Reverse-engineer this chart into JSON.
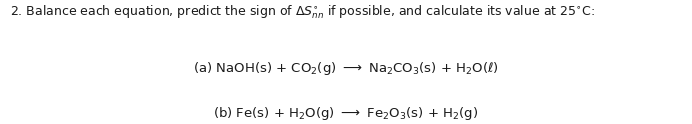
{
  "title_line": "2. Balance each equation, predict the sign of $\\Delta S^{\\circ}_{\\mathit{nn}}$ if possible, and calculate its value at 25$^{\\circ}$C:",
  "line_a": "(a) NaOH(s) + CO$_2$(g) $\\longrightarrow$ Na$_2$CO$_3$(s) + H$_2$O($\\ell$)",
  "line_b": "(b) Fe(s) + H$_2$O(g) $\\longrightarrow$ Fe$_2$O$_3$(s) + H$_2$(g)",
  "bg_color": "#ffffff",
  "text_color": "#1a1a1a",
  "title_fontsize": 9.0,
  "body_fontsize": 9.5,
  "fig_width": 6.92,
  "fig_height": 1.24,
  "dpi": 100
}
